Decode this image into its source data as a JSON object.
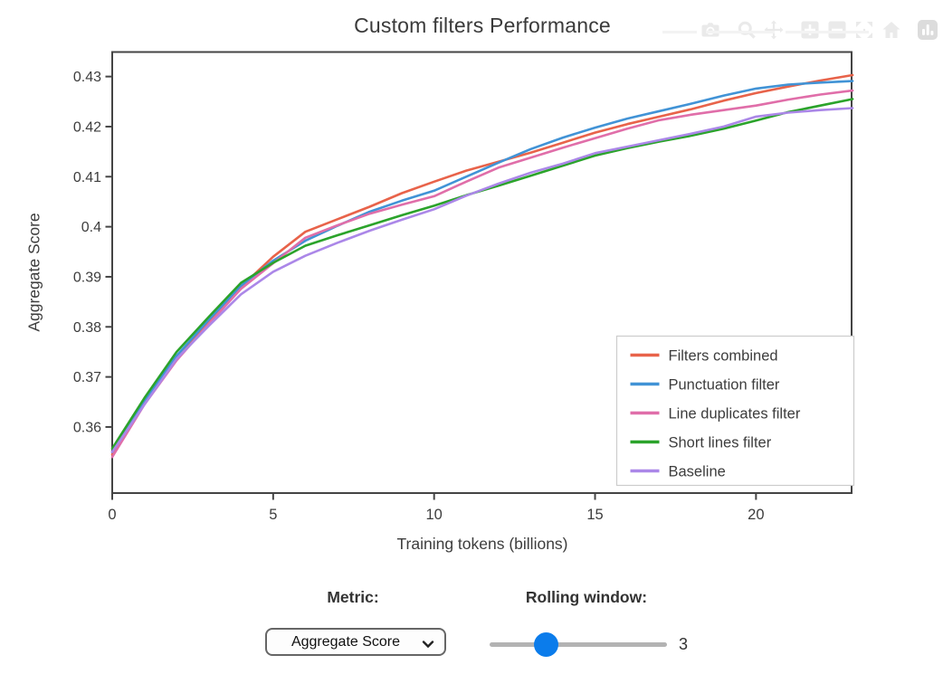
{
  "title": "Custom filters Performance",
  "modebar": {
    "icons": [
      "camera-download",
      "zoom-magnifier",
      "pan-arrows",
      "zoom-in",
      "zoom-out",
      "autoscale",
      "home-reset-axes",
      "plotly-logo"
    ]
  },
  "chart_data": {
    "type": "line",
    "title": "Custom filters Performance",
    "xlabel": "Training tokens (billions)",
    "ylabel": "Aggregate Score",
    "xlim": [
      0,
      22.97
    ],
    "ylim": [
      0.3468,
      0.4349
    ],
    "xticks": [
      0,
      5,
      10,
      15,
      20
    ],
    "yticks": [
      0.36,
      0.37,
      0.38,
      0.39,
      0.4,
      0.41,
      0.42,
      0.43
    ],
    "ytick_labels": [
      "0.36",
      "0.37",
      "0.38",
      "0.39",
      "0.4",
      "0.41",
      "0.42",
      "0.43"
    ],
    "grid": false,
    "legend_position": "inside-bottom-right",
    "x": [
      0,
      1,
      2,
      3,
      4,
      5,
      6,
      7,
      8,
      9,
      10,
      11,
      12,
      13,
      14,
      15,
      16,
      17,
      18,
      19,
      20,
      21,
      22,
      23
    ],
    "series": [
      {
        "name": "Filters combined",
        "color": "#E8634A",
        "values": [
          0.3545,
          0.365,
          0.374,
          0.3812,
          0.388,
          0.394,
          0.399,
          0.4015,
          0.404,
          0.4067,
          0.409,
          0.4112,
          0.413,
          0.4148,
          0.4168,
          0.4188,
          0.4205,
          0.422,
          0.4235,
          0.4252,
          0.4267,
          0.428,
          0.4292,
          0.4303
        ]
      },
      {
        "name": "Punctuation filter",
        "color": "#4193D6",
        "values": [
          0.355,
          0.3652,
          0.3742,
          0.3814,
          0.3882,
          0.3932,
          0.3972,
          0.4002,
          0.403,
          0.4052,
          0.4072,
          0.41,
          0.4128,
          0.4155,
          0.4178,
          0.4198,
          0.4216,
          0.4231,
          0.4246,
          0.4262,
          0.4276,
          0.4284,
          0.4288,
          0.4291
        ]
      },
      {
        "name": "Line duplicates filter",
        "color": "#E06EA9",
        "values": [
          0.354,
          0.3645,
          0.3733,
          0.3806,
          0.3876,
          0.3927,
          0.3978,
          0.4003,
          0.4026,
          0.4044,
          0.4061,
          0.409,
          0.4118,
          0.4138,
          0.4158,
          0.4177,
          0.4196,
          0.4213,
          0.4224,
          0.4233,
          0.4242,
          0.4254,
          0.4264,
          0.4272
        ]
      },
      {
        "name": "Short lines filter",
        "color": "#2BA32B",
        "values": [
          0.3557,
          0.3658,
          0.375,
          0.382,
          0.3888,
          0.3928,
          0.3962,
          0.3983,
          0.4003,
          0.4023,
          0.4042,
          0.4063,
          0.4082,
          0.4102,
          0.4122,
          0.4142,
          0.4157,
          0.417,
          0.4182,
          0.4196,
          0.4212,
          0.4229,
          0.4242,
          0.4255
        ]
      },
      {
        "name": "Baseline",
        "color": "#AB87E8",
        "values": [
          0.355,
          0.3645,
          0.3736,
          0.3802,
          0.3865,
          0.391,
          0.3942,
          0.3968,
          0.3992,
          0.4014,
          0.4035,
          0.4062,
          0.4086,
          0.4108,
          0.4126,
          0.4147,
          0.416,
          0.4173,
          0.4186,
          0.42,
          0.422,
          0.4228,
          0.4233,
          0.4237
        ]
      }
    ]
  },
  "controls": {
    "metric": {
      "label": "Metric:",
      "selected": "Aggregate Score"
    },
    "rolling_window": {
      "label": "Rolling window:",
      "value": "3"
    }
  },
  "colors": {
    "axis": "#444444",
    "tick_text": "#3d3d3d",
    "legend_border": "#cccccc",
    "slider_thumb": "#0b7ceb",
    "slider_track": "#b3b3b3",
    "modebar_icon": "#eaeaea",
    "modebar_logo": "#dcdcdc"
  }
}
